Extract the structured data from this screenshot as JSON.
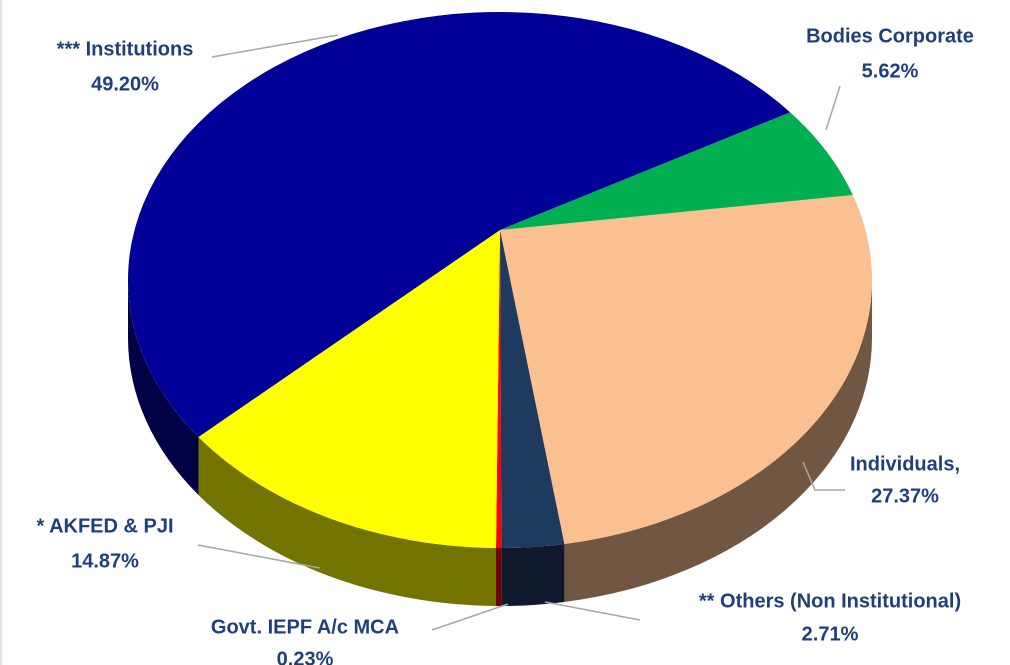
{
  "chart_data": {
    "type": "pie",
    "categories": [
      "Individuals,",
      "** Others (Non Institutional)",
      "Govt. IEPF A/c MCA",
      "* AKFED & PJI",
      "*** Institutions",
      "Bodies Corporate"
    ],
    "values": [
      27.37,
      2.71,
      0.23,
      14.87,
      49.2,
      5.62
    ],
    "value_labels": [
      "27.37%",
      "2.71%",
      "0.23%",
      "14.87%",
      "49.20%",
      "5.62%"
    ],
    "colors": [
      "#fac090",
      "#1f3a5f",
      "#ff0000",
      "#ffff00",
      "#000099",
      "#00b050"
    ]
  }
}
